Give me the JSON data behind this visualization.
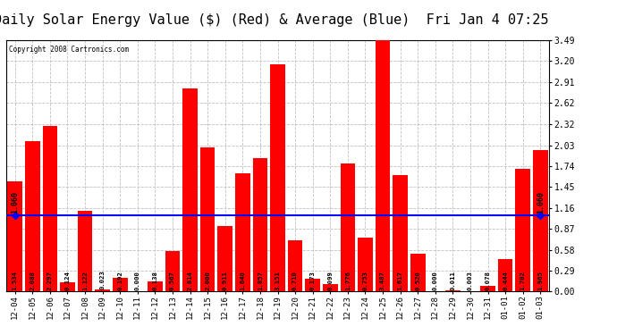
{
  "title": "Daily Solar Energy Value ($) (Red) & Average (Blue)  Fri Jan 4 07:25",
  "copyright": "Copyright 2008 Cartronics.com",
  "categories": [
    "12-04",
    "12-05",
    "12-06",
    "12-07",
    "12-08",
    "12-09",
    "12-10",
    "12-11",
    "12-12",
    "12-13",
    "12-14",
    "12-15",
    "12-16",
    "12-17",
    "12-18",
    "12-19",
    "12-20",
    "12-21",
    "12-22",
    "12-23",
    "12-24",
    "12-25",
    "12-26",
    "12-27",
    "12-28",
    "12-29",
    "12-30",
    "12-31",
    "01-01",
    "01-02",
    "01-03"
  ],
  "values": [
    1.534,
    2.088,
    2.297,
    0.124,
    1.122,
    0.023,
    0.192,
    0.0,
    0.138,
    0.567,
    2.814,
    2.0,
    0.911,
    1.64,
    1.857,
    3.151,
    0.71,
    0.173,
    0.099,
    1.776,
    0.753,
    3.487,
    1.617,
    0.52,
    0.0,
    0.011,
    0.003,
    0.078,
    0.444,
    1.702,
    1.965
  ],
  "average": 1.06,
  "bar_color": "#FF0000",
  "avg_line_color": "#0000FF",
  "background_color": "#FFFFFF",
  "plot_bg_color": "#FFFFFF",
  "grid_color": "#C0C0C0",
  "title_fontsize": 11,
  "ylabel_right_ticks": [
    0.0,
    0.29,
    0.58,
    0.87,
    1.16,
    1.45,
    1.74,
    2.03,
    2.32,
    2.62,
    2.91,
    3.2,
    3.49
  ],
  "ylim": [
    0,
    3.49
  ],
  "figsize": [
    6.9,
    3.75
  ],
  "dpi": 100
}
